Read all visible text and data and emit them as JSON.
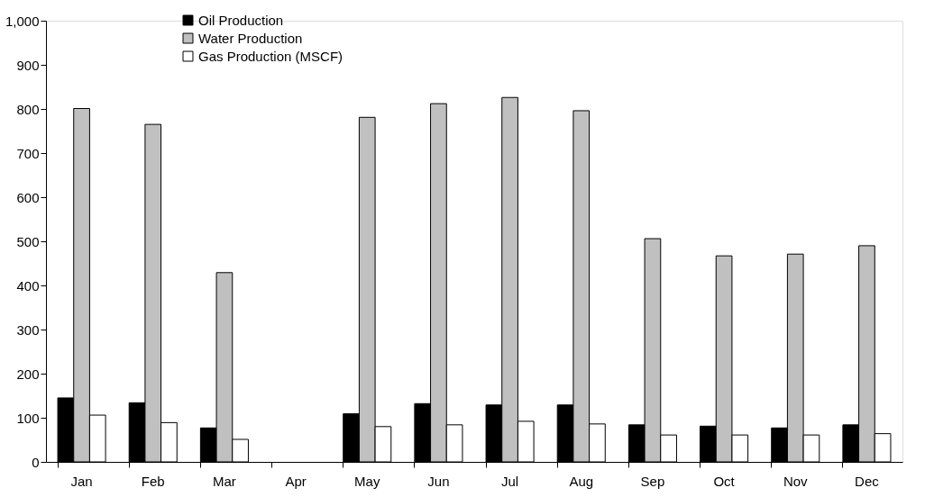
{
  "chart_data": {
    "type": "bar",
    "categories": [
      "Jan",
      "Feb",
      "Mar",
      "Apr",
      "May",
      "Jun",
      "Jul",
      "Aug",
      "Sep",
      "Oct",
      "Nov",
      "Dec"
    ],
    "series": [
      {
        "name": "Oil Production",
        "color": "#000000",
        "values": [
          145,
          134,
          77,
          null,
          109,
          132,
          129,
          129,
          84,
          81,
          77,
          84
        ]
      },
      {
        "name": "Water Production",
        "color": "#c0c0c0",
        "values": [
          801,
          765,
          429,
          null,
          781,
          812,
          826,
          796,
          506,
          467,
          471,
          490
        ]
      },
      {
        "name": "Gas Production (MSCF)",
        "color": "#ffffff",
        "values": [
          106,
          89,
          51,
          null,
          80,
          84,
          92,
          86,
          61,
          61,
          61,
          64
        ]
      }
    ],
    "ylim": [
      0,
      1000
    ],
    "yticks": [
      0,
      100,
      200,
      300,
      400,
      500,
      600,
      700,
      800,
      900,
      {
        "value": 1000,
        "label": "1,000"
      }
    ],
    "grid": false,
    "legend": "top left"
  }
}
